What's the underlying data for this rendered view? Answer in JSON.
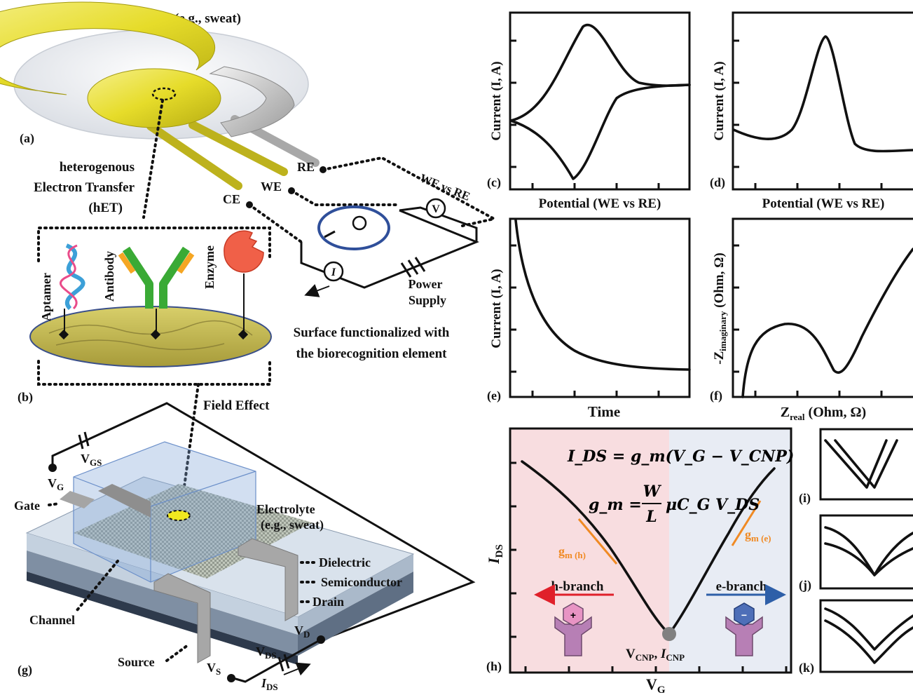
{
  "cell": {
    "electrolyte_title": "Electrolyte (e.g., sweat)",
    "label_a": "(a)",
    "het_line1": "heterogenous",
    "het_line2": "Electron Transfer",
    "het_line3": "(hET)",
    "re": "RE",
    "we": "WE",
    "ce": "CE",
    "we_vs_re": "WE vs RE",
    "voltmeter": "V",
    "ammeter": "I",
    "power_line1": "Power",
    "power_line2": "Supply"
  },
  "surface": {
    "label_b": "(b)",
    "aptamer": "Aptamer",
    "antibody": "Antibody",
    "enzyme": "Enzyme",
    "caption_line1": "Surface functionalized with",
    "caption_line2": "the biorecognition element",
    "field_effect": "Field Effect"
  },
  "fet": {
    "label_g": "(g)",
    "vgs": "V",
    "vgs_sub": "GS",
    "vg": "V",
    "vg_sub": "G",
    "gate": "Gate",
    "electrolyte_line1": "Electrolyte",
    "electrolyte_line2": "(e.g., sweat)",
    "dielectric": "Dielectric",
    "semiconductor": "Semiconductor",
    "drain": "Drain",
    "channel": "Channel",
    "source": "Source",
    "vd": "V",
    "vd_sub": "D",
    "vs": "V",
    "vs_sub": "S",
    "vds": "V",
    "vds_sub": "DS",
    "ids": "I",
    "ids_sub": "DS"
  },
  "panels": {
    "c": {
      "label": "(c)",
      "ylabel": "Current (I, A)",
      "xlabel": "Potential (WE vs RE)"
    },
    "d": {
      "label": "(d)",
      "ylabel": "Current (I, A)",
      "xlabel": "Potential (WE vs RE)"
    },
    "e": {
      "label": "(e)",
      "ylabel": "Current (I, A)",
      "xlabel": "Time"
    },
    "f": {
      "label": "(f)",
      "ylabel": "-Z",
      "ylabel_sub": "imaginary",
      "ylabel_unit": " (Ohm, Ω)",
      "xlabel": "Z",
      "xlabel_sub": "real",
      "xlabel_unit": " (Ohm, Ω)"
    },
    "h": {
      "label": "(h)",
      "ylabel": "I",
      "ylabel_sub": "DS",
      "xlabel": "V",
      "xlabel_sub": "G",
      "eq1": "I_DS = g_m(V_G − V_CNP)",
      "eq2_lhs": "g_m =",
      "eq2_num": "W",
      "eq2_den": "L",
      "eq2_rhs": "μC_G V_DS",
      "gm_h": "g",
      "gm_h_sub": "m (h)",
      "gm_e": "g",
      "gm_e_sub": "m (e)",
      "h_branch": "h-branch",
      "e_branch": "e-branch",
      "cnp": "V",
      "cnp_sub": "CNP",
      "icnp": "I",
      "icnp_sub": "CNP",
      "plus": "+",
      "minus": "−"
    },
    "i": {
      "label": "(i)"
    },
    "j": {
      "label": "(j)"
    },
    "k": {
      "label": "(k)"
    }
  },
  "colors": {
    "gold": "#e8e030",
    "gold_dark": "#c9c21a",
    "silver": "#c8c8c8",
    "blue_ring": "#2f4f9a",
    "h_region": "#f8dde0",
    "e_region": "#e8ecf4",
    "orange": "#f08a24",
    "red_arrow": "#e0202a",
    "blue_arrow": "#2e5fa8",
    "enzyme": "#f06048",
    "antibody_green": "#3aaa35",
    "antibody_orange": "#f5a623"
  }
}
